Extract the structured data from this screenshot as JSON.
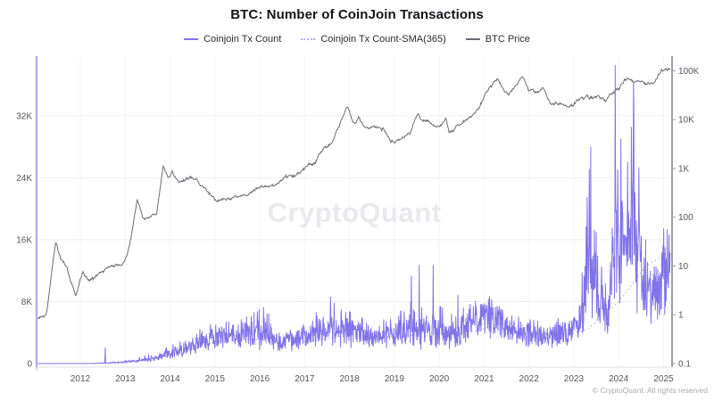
{
  "header": {
    "title": "BTC: Number of CoinJoin Transactions"
  },
  "legend": {
    "items": [
      {
        "label": "Coinjoin Tx Count",
        "color": "#8273e8",
        "style": "solid"
      },
      {
        "label": "Coinjoin Tx Count-SMA(365)",
        "color": "#b7aef1",
        "style": "dotted"
      },
      {
        "label": "BTC Price",
        "color": "#6d6a76",
        "style": "solid"
      }
    ]
  },
  "watermark": "CryptoQuant",
  "footer": {
    "copyright": "© CryptoQuant. All rights reserved"
  },
  "chart_data": {
    "type": "line",
    "title": "BTC: Number of CoinJoin Transactions",
    "x_axis": {
      "range": [
        2011.045,
        2025.17
      ],
      "ticks": [
        2012,
        2013,
        2014,
        2015,
        2016,
        2017,
        2018,
        2019,
        2020,
        2021,
        2022,
        2023,
        2024,
        2025
      ]
    },
    "y_left": {
      "scale": "linear",
      "range": [
        0,
        39700
      ],
      "tick_values": [
        0,
        8000,
        16000,
        24000,
        32000
      ],
      "tick_labels": [
        "0",
        "8K",
        "16K",
        "24K",
        "32K"
      ]
    },
    "y_right": {
      "scale": "log",
      "range": [
        0.1,
        200000
      ],
      "tick_values": [
        0.1,
        1,
        10,
        100,
        1000,
        10000,
        100000
      ],
      "tick_labels": [
        "0.1",
        "1",
        "10",
        "100",
        "1K",
        "10K",
        "100K"
      ]
    },
    "grid": {
      "horizontal": true,
      "vertical": true
    },
    "series": [
      {
        "name": "BTC Price",
        "axis": "right",
        "color": "#6d6a76",
        "style": "solid",
        "keypoints": [
          [
            2011.05,
            0.8
          ],
          [
            2011.25,
            1.1
          ],
          [
            2011.45,
            31
          ],
          [
            2011.55,
            14
          ],
          [
            2011.7,
            8
          ],
          [
            2011.9,
            2.3
          ],
          [
            2012.05,
            6.5
          ],
          [
            2012.2,
            4.9
          ],
          [
            2012.6,
            9
          ],
          [
            2012.8,
            11
          ],
          [
            2013.0,
            13.5
          ],
          [
            2013.1,
            25
          ],
          [
            2013.27,
            230
          ],
          [
            2013.4,
            90
          ],
          [
            2013.55,
            95
          ],
          [
            2013.7,
            120
          ],
          [
            2013.85,
            1100
          ],
          [
            2013.95,
            700
          ],
          [
            2014.05,
            850
          ],
          [
            2014.2,
            430
          ],
          [
            2014.4,
            580
          ],
          [
            2014.55,
            640
          ],
          [
            2014.8,
            350
          ],
          [
            2015.05,
            210
          ],
          [
            2015.3,
            240
          ],
          [
            2015.6,
            260
          ],
          [
            2015.85,
            320
          ],
          [
            2016.05,
            420
          ],
          [
            2016.3,
            430
          ],
          [
            2016.55,
            670
          ],
          [
            2016.8,
            640
          ],
          [
            2017.0,
            1000
          ],
          [
            2017.2,
            1200
          ],
          [
            2017.45,
            2600
          ],
          [
            2017.65,
            4300
          ],
          [
            2017.95,
            19000
          ],
          [
            2018.1,
            8500
          ],
          [
            2018.2,
            11000
          ],
          [
            2018.35,
            7000
          ],
          [
            2018.55,
            6500
          ],
          [
            2018.75,
            6400
          ],
          [
            2018.92,
            3300
          ],
          [
            2019.1,
            3700
          ],
          [
            2019.35,
            5300
          ],
          [
            2019.5,
            12800
          ],
          [
            2019.75,
            9500
          ],
          [
            2019.95,
            7200
          ],
          [
            2020.15,
            9500
          ],
          [
            2020.22,
            5000
          ],
          [
            2020.45,
            9000
          ],
          [
            2020.7,
            11500
          ],
          [
            2020.9,
            18000
          ],
          [
            2021.05,
            35000
          ],
          [
            2021.3,
            63000
          ],
          [
            2021.45,
            37000
          ],
          [
            2021.55,
            32000
          ],
          [
            2021.7,
            47000
          ],
          [
            2021.85,
            67000
          ],
          [
            2022.0,
            43000
          ],
          [
            2022.2,
            39000
          ],
          [
            2022.35,
            45000
          ],
          [
            2022.5,
            20000
          ],
          [
            2022.7,
            23000
          ],
          [
            2022.9,
            16500
          ],
          [
            2023.05,
            21000
          ],
          [
            2023.2,
            28000
          ],
          [
            2023.4,
            27000
          ],
          [
            2023.55,
            30000
          ],
          [
            2023.7,
            26000
          ],
          [
            2023.85,
            35000
          ],
          [
            2024.0,
            43000
          ],
          [
            2024.15,
            68000
          ],
          [
            2024.3,
            65000
          ],
          [
            2024.45,
            62000
          ],
          [
            2024.6,
            57000
          ],
          [
            2024.75,
            62000
          ],
          [
            2024.85,
            70000
          ],
          [
            2024.95,
            98000
          ],
          [
            2025.05,
            95000
          ],
          [
            2025.15,
            98000
          ]
        ]
      },
      {
        "name": "Coinjoin Tx Count-SMA(365)",
        "axis": "left",
        "color": "#b7aef1",
        "style": "dotted",
        "keypoints": [
          [
            2012.3,
            10
          ],
          [
            2013.0,
            100
          ],
          [
            2013.7,
            500
          ],
          [
            2014.3,
            1500
          ],
          [
            2015.0,
            2800
          ],
          [
            2015.7,
            3100
          ],
          [
            2016.3,
            3000
          ],
          [
            2016.8,
            2800
          ],
          [
            2017.5,
            3200
          ],
          [
            2018.1,
            3800
          ],
          [
            2018.7,
            3400
          ],
          [
            2019.3,
            3600
          ],
          [
            2019.8,
            4000
          ],
          [
            2020.3,
            3800
          ],
          [
            2020.9,
            4300
          ],
          [
            2021.4,
            5300
          ],
          [
            2021.9,
            4900
          ],
          [
            2022.4,
            3900
          ],
          [
            2022.9,
            3800
          ],
          [
            2023.3,
            4400
          ],
          [
            2023.7,
            6500
          ],
          [
            2024.0,
            8000
          ],
          [
            2024.3,
            10200
          ],
          [
            2024.6,
            12600
          ],
          [
            2024.9,
            13600
          ],
          [
            2025.05,
            14200
          ],
          [
            2025.15,
            13800
          ]
        ]
      },
      {
        "name": "Coinjoin Tx Count",
        "axis": "left",
        "color": "#8273e8",
        "style": "solid",
        "band_keypoints": [
          [
            2011.05,
            3,
            3
          ],
          [
            2012.3,
            8,
            8
          ],
          [
            2012.55,
            60,
            120
          ],
          [
            2013.0,
            150,
            150
          ],
          [
            2013.5,
            500,
            400
          ],
          [
            2014.0,
            1100,
            700
          ],
          [
            2014.5,
            2200,
            1100
          ],
          [
            2015.0,
            3300,
            1300
          ],
          [
            2015.5,
            3300,
            1300
          ],
          [
            2016.1,
            3800,
            2200
          ],
          [
            2016.45,
            2600,
            1000
          ],
          [
            2017.0,
            3300,
            1400
          ],
          [
            2017.6,
            4000,
            2500
          ],
          [
            2018.0,
            3800,
            1800
          ],
          [
            2018.5,
            3300,
            1300
          ],
          [
            2019.0,
            3500,
            1500
          ],
          [
            2019.45,
            4200,
            2800
          ],
          [
            2019.9,
            3800,
            2500
          ],
          [
            2020.3,
            3600,
            1800
          ],
          [
            2020.8,
            4800,
            2000
          ],
          [
            2021.05,
            6300,
            1800
          ],
          [
            2021.35,
            5200,
            1800
          ],
          [
            2021.8,
            3800,
            1300
          ],
          [
            2022.3,
            3500,
            1200
          ],
          [
            2022.8,
            3800,
            1400
          ],
          [
            2023.1,
            4300,
            1800
          ],
          [
            2023.35,
            11000,
            9000
          ],
          [
            2023.55,
            8000,
            5000
          ],
          [
            2023.75,
            5500,
            2000
          ],
          [
            2023.95,
            15000,
            12000
          ],
          [
            2024.15,
            13000,
            9000
          ],
          [
            2024.35,
            16000,
            11000
          ],
          [
            2024.55,
            10000,
            4000
          ],
          [
            2024.75,
            8000,
            2500
          ],
          [
            2024.9,
            9000,
            3000
          ],
          [
            2025.05,
            11500,
            4000
          ],
          [
            2025.15,
            10500,
            3500
          ]
        ],
        "spikes": [
          [
            2012.55,
            2050
          ],
          [
            2016.08,
            7250
          ],
          [
            2016.16,
            6400
          ],
          [
            2017.27,
            6100
          ],
          [
            2017.58,
            8600
          ],
          [
            2017.66,
            7800
          ],
          [
            2018.0,
            6700
          ],
          [
            2019.38,
            11300
          ],
          [
            2019.55,
            12700
          ],
          [
            2019.87,
            12700
          ],
          [
            2020.42,
            8800
          ],
          [
            2021.1,
            8300
          ],
          [
            2023.3,
            21500
          ],
          [
            2023.38,
            28000
          ],
          [
            2023.5,
            17000
          ],
          [
            2023.92,
            38500
          ],
          [
            2023.98,
            25000
          ],
          [
            2024.05,
            29000
          ],
          [
            2024.2,
            26000
          ],
          [
            2024.28,
            30500
          ],
          [
            2024.33,
            36300
          ],
          [
            2024.45,
            25300
          ],
          [
            2024.6,
            16000
          ],
          [
            2025.0,
            17400
          ],
          [
            2025.07,
            13600
          ]
        ]
      }
    ],
    "watermark": "CryptoQuant",
    "legend_position": "top-center"
  }
}
